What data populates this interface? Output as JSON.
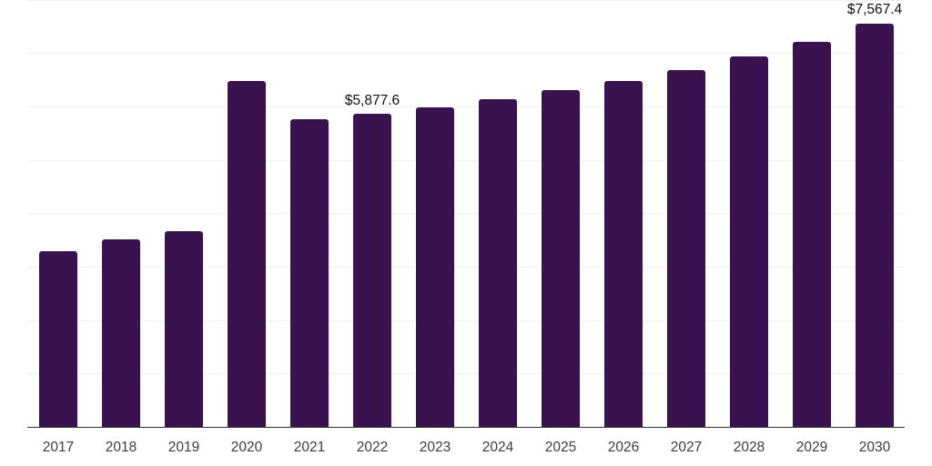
{
  "chart_data": {
    "type": "bar",
    "title": "",
    "xlabel": "",
    "ylabel": "",
    "categories": [
      "2017",
      "2018",
      "2019",
      "2020",
      "2021",
      "2022",
      "2023",
      "2024",
      "2025",
      "2026",
      "2027",
      "2028",
      "2029",
      "2030"
    ],
    "values": [
      3300,
      3535,
      3675,
      6485,
      5780,
      5877.6,
      6000,
      6150,
      6320,
      6490,
      6690,
      6950,
      7230,
      7567.4
    ],
    "value_labels": [
      "",
      "",
      "",
      "",
      "",
      "$5,877.6",
      "",
      "",
      "",
      "",
      "",
      "",
      "",
      "$7,567.4"
    ],
    "ylim": [
      0,
      8000
    ],
    "gridline_interval": 1000,
    "grid": "horizontal",
    "legend": "none",
    "y_tick_labels_visible": false,
    "colors": {
      "bar": "#3a1250",
      "gridline": "#f0f0f0",
      "axis_line": "#303030",
      "x_tick_label": "#3c3c3c",
      "value_label": "#101010",
      "background": "#ffffff"
    }
  }
}
